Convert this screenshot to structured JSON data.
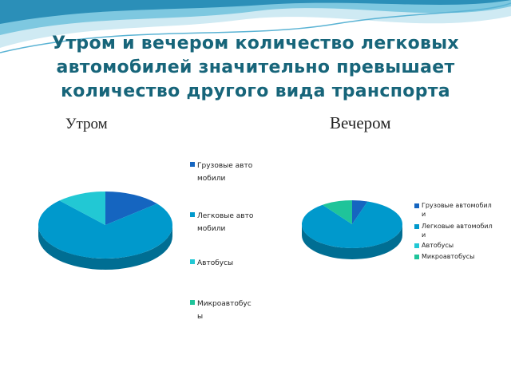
{
  "title": "Утром и вечером количество легковых автомобилей значительно превышает количество другого вида транспорта",
  "chart_data": [
    {
      "type": "pie3d",
      "title": "Утром",
      "categories": [
        "Грузовые автомобили",
        "Легковые автомобили",
        "Автобусы",
        "Микроавтобусы"
      ],
      "values": [
        14,
        74,
        12,
        0
      ],
      "colors": [
        "#1565c0",
        "#0099cc",
        "#22c8d4",
        "#1fc49a"
      ]
    },
    {
      "type": "pie3d",
      "title": "Вечером",
      "categories": [
        "Грузовые автомобили",
        "Легковые автомобили",
        "Автобусы",
        "Микроавтобусы"
      ],
      "values": [
        5,
        85,
        0,
        10
      ],
      "colors": [
        "#1565c0",
        "#0099cc",
        "#22c8d4",
        "#1fc49a"
      ]
    }
  ]
}
